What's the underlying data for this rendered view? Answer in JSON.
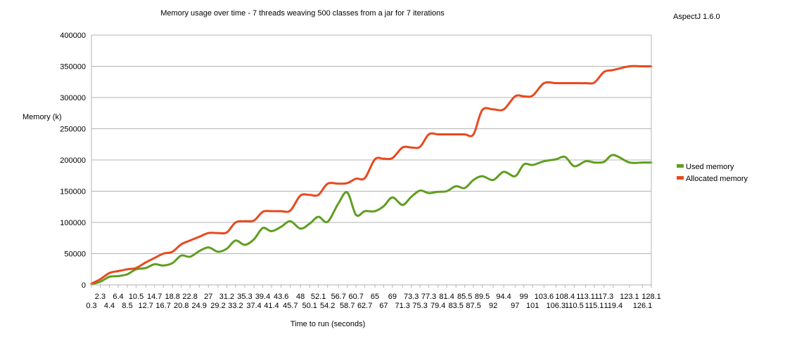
{
  "chart_data": {
    "type": "line",
    "title": "Memory usage over time - 7 threads weaving 500 classes from a jar for 7 iterations",
    "annotation": "AspectJ 1.6.0",
    "xlabel": "Time to run (seconds)",
    "ylabel": "Memory (k)",
    "ylim": [
      0,
      400000
    ],
    "yticks": [
      "0",
      "50000",
      "100000",
      "150000",
      "200000",
      "250000",
      "300000",
      "350000",
      "400000"
    ],
    "xtick_labels_upper": [
      "2.3",
      "6.4",
      "10.5",
      "14.7",
      "18.8",
      "22.8",
      "27",
      "31.2",
      "35.3",
      "39.4",
      "43.6",
      "48",
      "52.1",
      "56.7",
      "60.7",
      "65",
      "69",
      "73.3",
      "77.3",
      "81.4",
      "85.5",
      "89.5",
      "94.4",
      "99",
      "103.6",
      "108.4",
      "113.1",
      "117.3",
      "123.1",
      "128.1"
    ],
    "xtick_labels_lower": [
      "0.3",
      "4.4",
      "8.5",
      "12.7",
      "16.7",
      "20.8",
      "24.9",
      "29.2",
      "33.2",
      "37.4",
      "41.4",
      "45.7",
      "50.1",
      "54.2",
      "58.7",
      "62.7",
      "67",
      "71.3",
      "75.3",
      "79.4",
      "83.5",
      "87.5",
      "92",
      "97",
      "101",
      "106.3",
      "110.5",
      "115.1",
      "119.4",
      "126.1"
    ],
    "grid": true,
    "legend_position": "right",
    "x": [
      0.3,
      2.3,
      4.4,
      6.4,
      8.5,
      10.5,
      12.7,
      14.7,
      16.7,
      18.8,
      20.8,
      22.8,
      24.9,
      27,
      29.2,
      31.2,
      33.2,
      35.3,
      37.4,
      39.4,
      41.4,
      43.6,
      45.7,
      48,
      50.1,
      52.1,
      54.2,
      56.7,
      58.7,
      60.7,
      62.7,
      65,
      67,
      69,
      71.3,
      73.3,
      75.3,
      77.3,
      79.4,
      81.4,
      83.5,
      85.5,
      87.5,
      89.5,
      92,
      94.4,
      97,
      99,
      101,
      103.6,
      106.3,
      108.4,
      110.5,
      113.1,
      115.1,
      117.3,
      119.4,
      123.1,
      126.1,
      128.1
    ],
    "series": [
      {
        "name": "Used memory",
        "color": "#5f9e1f",
        "values": [
          1000,
          5000,
          13000,
          14000,
          17000,
          25000,
          27000,
          33000,
          31000,
          35000,
          47000,
          45000,
          54000,
          60000,
          53000,
          58000,
          71000,
          64000,
          73000,
          91000,
          86000,
          93000,
          102000,
          90000,
          98000,
          109000,
          101000,
          131000,
          148000,
          112000,
          118000,
          118000,
          126000,
          140000,
          128000,
          141000,
          151000,
          147000,
          149000,
          150000,
          158000,
          155000,
          168000,
          174000,
          168000,
          181000,
          174000,
          193000,
          192000,
          198000,
          201000,
          205000,
          190000,
          198000,
          196000,
          197000,
          208000,
          196000,
          196000,
          196000
        ]
      },
      {
        "name": "Allocated memory",
        "color": "#e8491d",
        "values": [
          2000,
          9000,
          19000,
          22000,
          25000,
          27000,
          36000,
          43000,
          50000,
          53000,
          65000,
          71000,
          77000,
          83000,
          83000,
          84000,
          100000,
          102000,
          103000,
          117000,
          118000,
          118000,
          119000,
          143000,
          144000,
          144000,
          162000,
          162000,
          163000,
          170000,
          171000,
          201000,
          202000,
          203000,
          220000,
          220000,
          221000,
          241000,
          241000,
          241000,
          241000,
          241000,
          241000,
          280000,
          281000,
          281000,
          302000,
          302000,
          303000,
          323000,
          323000,
          323000,
          323000,
          323000,
          324000,
          341000,
          344000,
          350000,
          350000,
          350000
        ]
      }
    ]
  }
}
